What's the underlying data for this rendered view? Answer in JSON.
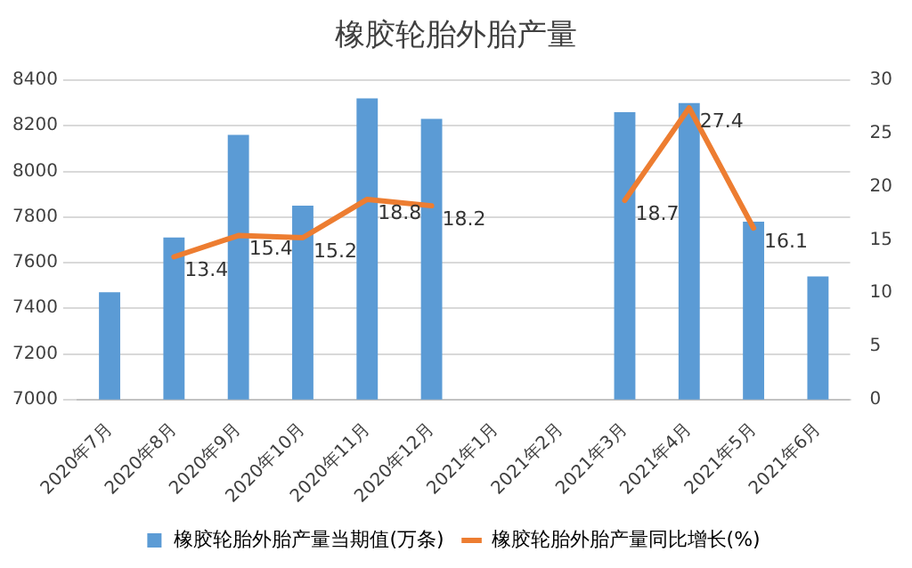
{
  "chart_data": {
    "type": "bar",
    "title": "橡胶轮胎外胎产量",
    "categories": [
      "2020年7月",
      "2020年8月",
      "2020年9月",
      "2020年10月",
      "2020年11月",
      "2020年12月",
      "2021年1月",
      "2021年2月",
      "2021年3月",
      "2021年4月",
      "2021年5月",
      "2021年6月"
    ],
    "series": [
      {
        "name": "橡胶轮胎外胎产量当期值(万条)",
        "color": "#5b9bd5",
        "values": [
          7470,
          7710,
          8160,
          7850,
          8320,
          8230,
          null,
          null,
          8260,
          8300,
          7780,
          7540
        ]
      },
      {
        "name": "橡胶轮胎外胎产量同比增长(%)",
        "type": "line",
        "axis": "y2",
        "color": "#ed7d31",
        "values": [
          null,
          13.4,
          15.4,
          15.2,
          18.8,
          18.2,
          null,
          null,
          18.7,
          27.4,
          16.1,
          null
        ],
        "value_labels": [
          null,
          "13.4",
          "15.4",
          "15.2",
          "18.8",
          "18.2",
          null,
          null,
          "18.7",
          "27.4",
          "16.1",
          null
        ]
      }
    ],
    "ylim": [
      7000,
      8400
    ],
    "yticks": [
      7000,
      7200,
      7400,
      7600,
      7800,
      8000,
      8200,
      8400
    ],
    "y2lim": [
      0,
      30
    ],
    "y2ticks": [
      0,
      5,
      10,
      15,
      20,
      25,
      30
    ],
    "grid": "y",
    "legend": "bottom",
    "marker": "none",
    "line_style": "solid"
  }
}
